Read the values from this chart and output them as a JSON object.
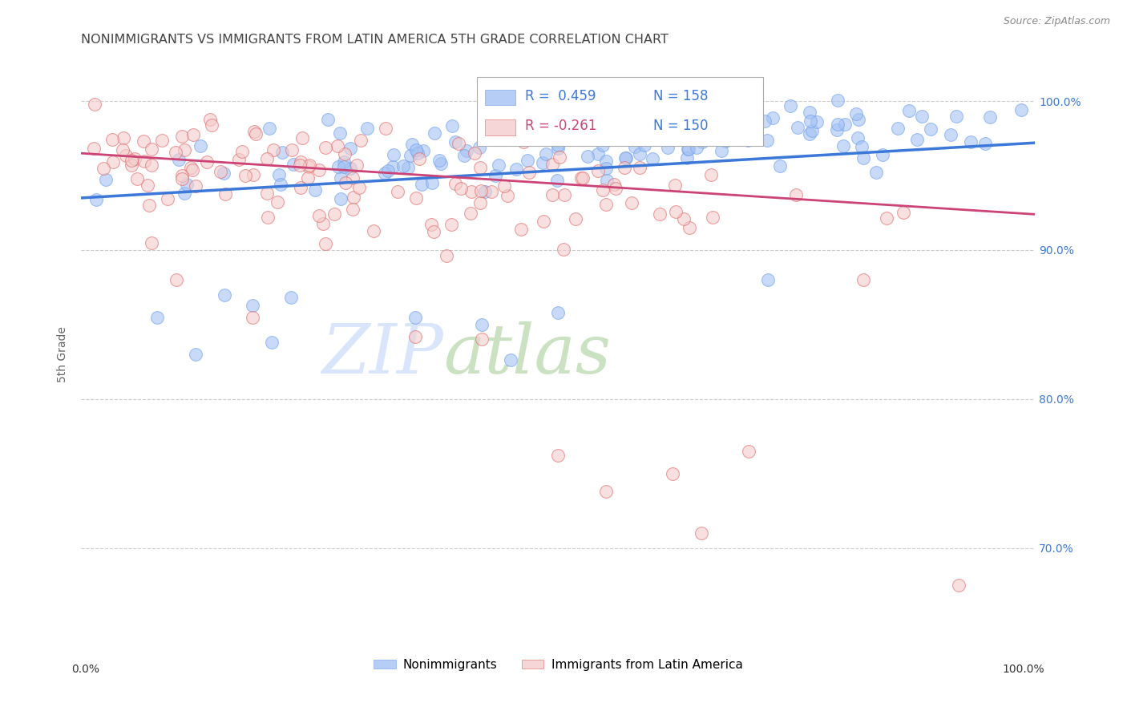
{
  "title": "NONIMMIGRANTS VS IMMIGRANTS FROM LATIN AMERICA 5TH GRADE CORRELATION CHART",
  "source_text": "Source: ZipAtlas.com",
  "ylabel": "5th Grade",
  "xlim": [
    0.0,
    1.0
  ],
  "ylim": [
    0.63,
    1.03
  ],
  "yticks": [
    0.7,
    0.8,
    0.9,
    1.0
  ],
  "ytick_labels": [
    "70.0%",
    "80.0%",
    "90.0%",
    "100.0%"
  ],
  "legend_r_blue": "R =  0.459",
  "legend_n_blue": "N = 158",
  "legend_r_pink": "R = -0.261",
  "legend_n_pink": "N = 150",
  "blue_color": "#a4c2f4",
  "pink_color": "#f4cccc",
  "blue_edge_color": "#6d9eeb",
  "pink_edge_color": "#e06666",
  "blue_line_color": "#3c78d8",
  "pink_line_color": "#cc4477",
  "right_label_color": "#3c78d8",
  "background_color": "#ffffff",
  "grid_color": "#cccccc",
  "title_color": "#434343",
  "watermark_zip_color": "#cfe2f3",
  "watermark_atlas_color": "#b6d7a8",
  "blue_line_x": [
    0.0,
    1.0
  ],
  "blue_line_y": [
    0.935,
    0.972
  ],
  "pink_line_x": [
    0.0,
    1.0
  ],
  "pink_line_y": [
    0.965,
    0.924
  ],
  "marker_size": 130,
  "marker_alpha": 0.6,
  "legend_label_blue": "Nonimmigrants",
  "legend_label_pink": "Immigrants from Latin America",
  "blue_n": 158,
  "pink_n": 150
}
